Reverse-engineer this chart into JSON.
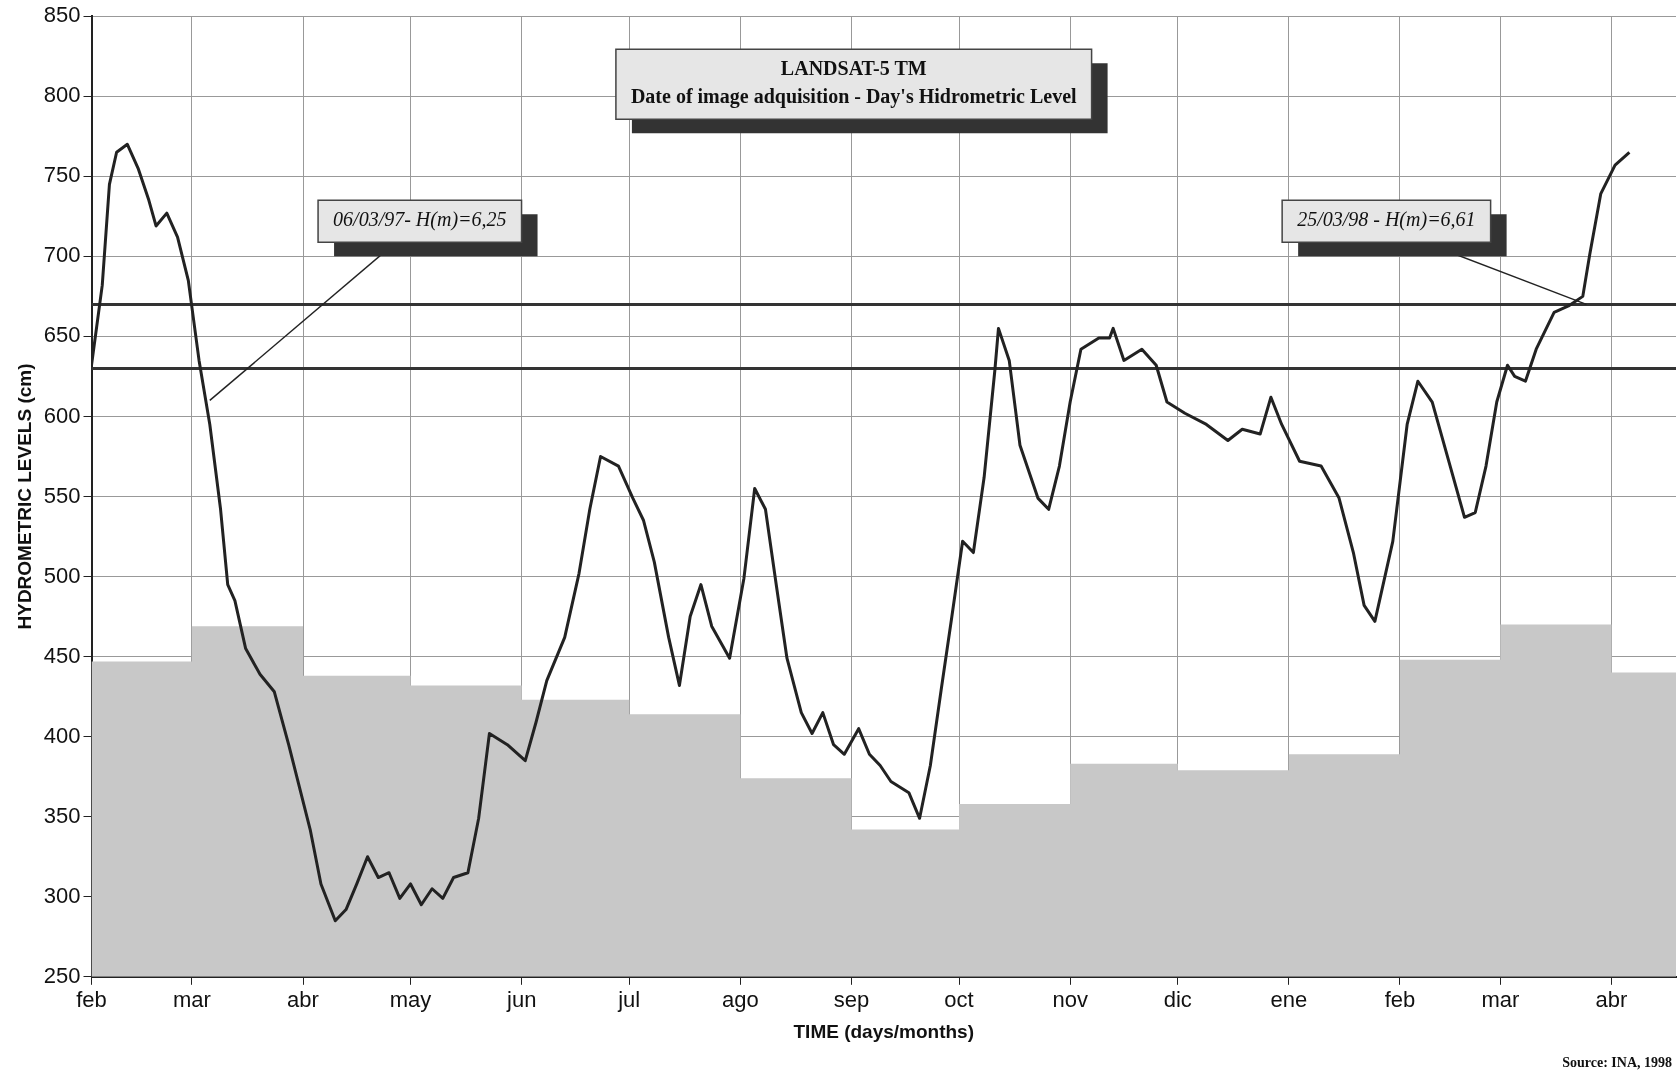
{
  "chart_data": {
    "type": "line",
    "title": "LANDSAT-5 TM",
    "subtitle": "Date of image adquisition - Day's Hidrometric Level",
    "xlabel": "TIME (days/months)",
    "ylabel": "HYDROMETRIC LEVELS (cm)",
    "xlim": [
      "1997-02-01",
      "1998-04-19"
    ],
    "ylim": [
      250,
      850
    ],
    "xticks": [
      {
        "value": "1997-02-01",
        "label": "feb"
      },
      {
        "value": "1997-03-01",
        "label": "mar"
      },
      {
        "value": "1997-04-01",
        "label": "abr"
      },
      {
        "value": "1997-05-01",
        "label": "may"
      },
      {
        "value": "1997-06-01",
        "label": "jun"
      },
      {
        "value": "1997-07-01",
        "label": "jul"
      },
      {
        "value": "1997-08-01",
        "label": "ago"
      },
      {
        "value": "1997-09-01",
        "label": "sep"
      },
      {
        "value": "1997-10-01",
        "label": "oct"
      },
      {
        "value": "1997-11-01",
        "label": "nov"
      },
      {
        "value": "1997-12-01",
        "label": "dic"
      },
      {
        "value": "1998-01-01",
        "label": "ene"
      },
      {
        "value": "1998-02-01",
        "label": "feb"
      },
      {
        "value": "1998-03-01",
        "label": "mar"
      },
      {
        "value": "1998-04-01",
        "label": "abr"
      }
    ],
    "yticks": [
      250,
      300,
      350,
      400,
      450,
      500,
      550,
      600,
      650,
      700,
      750,
      800,
      850
    ],
    "grid": true,
    "legend": false,
    "marker": "none",
    "line_style": "solid",
    "series": [
      {
        "type": "area",
        "color": "#c8c8c8",
        "x": [
          "1997-02-01",
          "1997-03-01",
          "1997-04-01",
          "1997-05-01",
          "1997-06-01",
          "1997-07-01",
          "1997-08-01",
          "1997-09-01",
          "1997-10-01",
          "1997-11-01",
          "1997-12-01",
          "1998-01-01",
          "1998-02-01",
          "1998-03-01",
          "1998-04-01",
          "1998-04-19"
        ],
        "values": [
          447,
          469,
          438,
          432,
          423,
          414,
          374,
          342,
          358,
          383,
          379,
          389,
          448,
          470,
          440,
          440
        ]
      },
      {
        "color": "#222222",
        "x": [
          "1997-02-01",
          "1997-02-04",
          "1997-02-06",
          "1997-02-08",
          "1997-02-11",
          "1997-02-14",
          "1997-02-17",
          "1997-02-19",
          "1997-02-22",
          "1997-02-25",
          "1997-02-28",
          "1997-03-03",
          "1997-03-06",
          "1997-03-09",
          "1997-03-11",
          "1997-03-13",
          "1997-03-16",
          "1997-03-20",
          "1997-03-24",
          "1997-03-28",
          "1997-04-03",
          "1997-04-06",
          "1997-04-10",
          "1997-04-13",
          "1997-04-16",
          "1997-04-19",
          "1997-04-22",
          "1997-04-25",
          "1997-04-28",
          "1997-05-01",
          "1997-05-04",
          "1997-05-07",
          "1997-05-10",
          "1997-05-13",
          "1997-05-17",
          "1997-05-20",
          "1997-05-23",
          "1997-05-28",
          "1997-06-02",
          "1997-06-05",
          "1997-06-08",
          "1997-06-13",
          "1997-06-17",
          "1997-06-20",
          "1997-06-23",
          "1997-06-28",
          "1997-07-02",
          "1997-07-05",
          "1997-07-08",
          "1997-07-12",
          "1997-07-15",
          "1997-07-18",
          "1997-07-21",
          "1997-07-24",
          "1997-07-29",
          "1997-08-02",
          "1997-08-05",
          "1997-08-08",
          "1997-08-11",
          "1997-08-14",
          "1997-08-18",
          "1997-08-21",
          "1997-08-24",
          "1997-08-27",
          "1997-08-30",
          "1997-09-03",
          "1997-09-06",
          "1997-09-09",
          "1997-09-12",
          "1997-09-17",
          "1997-09-20",
          "1997-09-23",
          "1997-09-26",
          "1997-09-29",
          "1997-10-02",
          "1997-10-05",
          "1997-10-08",
          "1997-10-11",
          "1997-10-12",
          "1997-10-15",
          "1997-10-18",
          "1997-10-23",
          "1997-10-26",
          "1997-10-29",
          "1997-11-01",
          "1997-11-04",
          "1997-11-09",
          "1997-11-12",
          "1997-11-13",
          "1997-11-16",
          "1997-11-21",
          "1997-11-25",
          "1997-11-28",
          "1997-12-03",
          "1997-12-09",
          "1997-12-15",
          "1997-12-19",
          "1997-12-24",
          "1997-12-27",
          "1997-12-30",
          "1998-01-04",
          "1998-01-10",
          "1998-01-15",
          "1998-01-19",
          "1998-01-22",
          "1998-01-25",
          "1998-01-30",
          "1998-02-03",
          "1998-02-06",
          "1998-02-10",
          "1998-02-15",
          "1998-02-19",
          "1998-02-22",
          "1998-02-25",
          "1998-02-28",
          "1998-03-03",
          "1998-03-05",
          "1998-03-08",
          "1998-03-11",
          "1998-03-16",
          "1998-03-20",
          "1998-03-24",
          "1998-03-26",
          "1998-03-29",
          "1998-04-02",
          "1998-04-06"
        ],
        "values": [
          632,
          682,
          745,
          765,
          770,
          755,
          735,
          719,
          727,
          712,
          685,
          635,
          595,
          542,
          495,
          485,
          455,
          439,
          428,
          395,
          342,
          308,
          285,
          292,
          308,
          325,
          312,
          315,
          299,
          308,
          295,
          305,
          299,
          312,
          315,
          349,
          402,
          395,
          385,
          409,
          435,
          462,
          502,
          542,
          575,
          569,
          549,
          535,
          509,
          462,
          432,
          475,
          495,
          469,
          449,
          499,
          555,
          542,
          495,
          449,
          415,
          402,
          415,
          395,
          389,
          405,
          389,
          382,
          372,
          365,
          349,
          382,
          429,
          475,
          522,
          515,
          562,
          629,
          655,
          635,
          582,
          549,
          542,
          569,
          609,
          642,
          649,
          649,
          655,
          635,
          642,
          632,
          609,
          602,
          595,
          585,
          592,
          589,
          612,
          595,
          572,
          569,
          549,
          515,
          482,
          472,
          522,
          595,
          622,
          609,
          569,
          537,
          540,
          569,
          609,
          632,
          625,
          622,
          642,
          665,
          669,
          675,
          702,
          739,
          757,
          765
        ]
      }
    ],
    "ref_lines": [
      {
        "axis": "y",
        "value": 670,
        "color": "#333333"
      },
      {
        "axis": "y",
        "value": 630,
        "color": "#333333"
      }
    ],
    "annotations": [
      {
        "text": "06/03/97- H(m)=6,25",
        "x": "1997-03-06",
        "y": 610
      },
      {
        "text": "25/03/98 - H(m)=6,61",
        "x": "1998-03-25",
        "y": 670
      },
      "Source: INA, 1998"
    ]
  }
}
